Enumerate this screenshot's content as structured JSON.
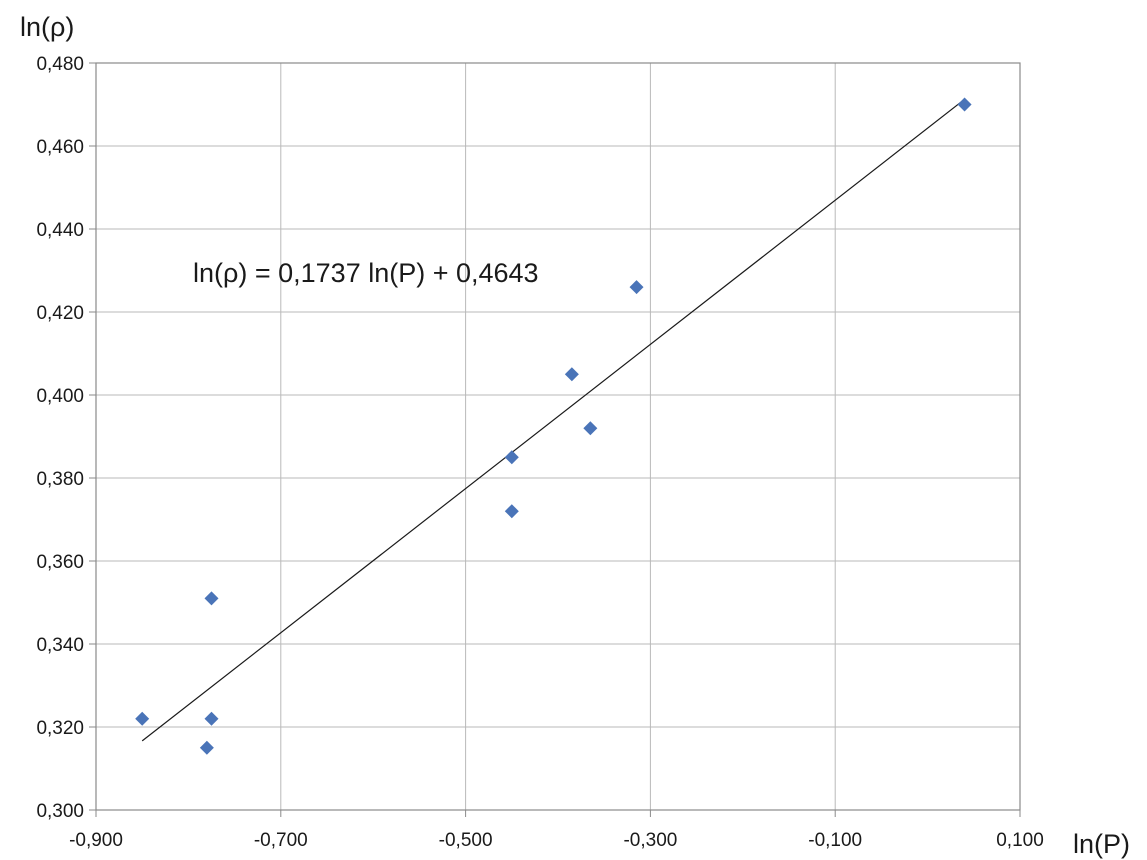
{
  "chart_data": {
    "type": "scatter",
    "xlabel": "ln(P)",
    "ylabel": "ln(ρ)",
    "xlim": [
      -0.9,
      0.1
    ],
    "ylim": [
      0.3,
      0.48
    ],
    "x_ticks": [
      -0.9,
      -0.7,
      -0.5,
      -0.3,
      -0.1,
      0.1
    ],
    "x_tick_labels": [
      "-0,900",
      "-0,700",
      "-0,500",
      "-0,300",
      "-0,100",
      "0,100"
    ],
    "y_ticks": [
      0.3,
      0.32,
      0.34,
      0.36,
      0.38,
      0.4,
      0.42,
      0.44,
      0.46,
      0.48
    ],
    "y_tick_labels": [
      "0,300",
      "0,320",
      "0,340",
      "0,360",
      "0,380",
      "0,400",
      "0,420",
      "0,440",
      "0,460",
      "0,480"
    ],
    "grid": true,
    "marker": "diamond",
    "series": [
      {
        "color": "#4a74b8",
        "points": [
          {
            "x": -0.85,
            "y": 0.322
          },
          {
            "x": -0.78,
            "y": 0.315
          },
          {
            "x": -0.775,
            "y": 0.322
          },
          {
            "x": -0.775,
            "y": 0.351
          },
          {
            "x": -0.45,
            "y": 0.385
          },
          {
            "x": -0.45,
            "y": 0.372
          },
          {
            "x": -0.385,
            "y": 0.405
          },
          {
            "x": -0.365,
            "y": 0.392
          },
          {
            "x": -0.315,
            "y": 0.426
          },
          {
            "x": 0.04,
            "y": 0.47
          }
        ]
      }
    ],
    "trendline": {
      "slope": 0.1737,
      "intercept": 0.4643,
      "x_range": [
        -0.85,
        0.04
      ],
      "color": "#1a1a1a",
      "equation": "ln(ρ) = 0,1737 ln(P) + 0,4643"
    }
  }
}
